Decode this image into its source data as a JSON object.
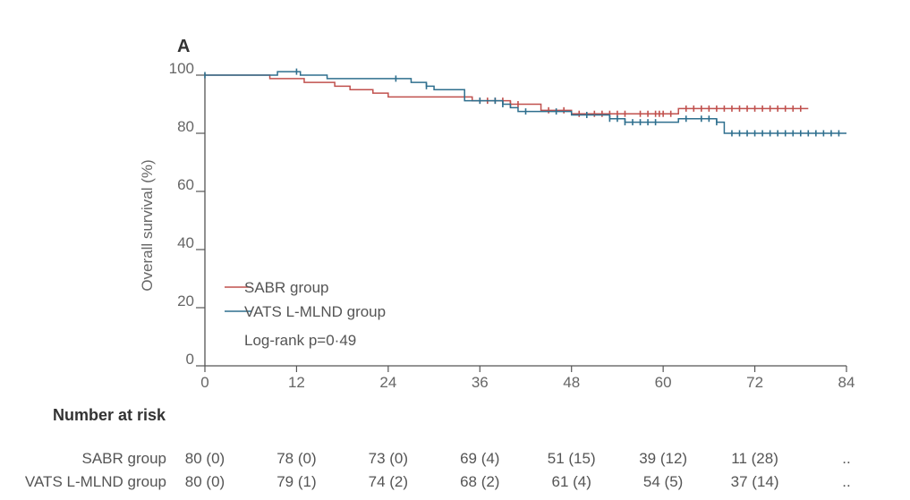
{
  "chart_data": {
    "type": "line",
    "panel_label": "A",
    "ylabel": "Overall survival (%)",
    "xlim": [
      0,
      84
    ],
    "ylim": [
      0,
      100
    ],
    "x_ticks": [
      0,
      12,
      24,
      36,
      48,
      60,
      72,
      84
    ],
    "x_tick_labels": [
      "0",
      "12",
      "24",
      "36",
      "48",
      "60",
      "72",
      "84"
    ],
    "y_ticks": [
      0,
      20,
      40,
      60,
      80,
      100
    ],
    "y_tick_labels": [
      "0",
      "20",
      "40",
      "60",
      "80",
      "100"
    ],
    "series": [
      {
        "name": "SABR group",
        "color": "#c0504d",
        "steps": [
          [
            0,
            100
          ],
          [
            8.5,
            98.8
          ],
          [
            13,
            97.5
          ],
          [
            17,
            96.2
          ],
          [
            19,
            95
          ],
          [
            22,
            93.8
          ],
          [
            24,
            92.5
          ],
          [
            35,
            91.2
          ],
          [
            40,
            90
          ],
          [
            44,
            87.9
          ],
          [
            48,
            86.7
          ],
          [
            62,
            88.5
          ],
          [
            79,
            88.5
          ]
        ],
        "censor_marks": [
          36,
          37,
          38,
          39,
          40,
          41,
          45,
          47,
          49,
          51,
          52,
          53,
          54,
          55,
          57,
          58,
          59,
          59.5,
          60,
          61,
          63,
          64,
          65,
          66,
          67,
          68,
          69,
          70,
          71,
          72,
          73,
          74,
          75,
          76,
          77,
          78
        ]
      },
      {
        "name": "VATS L-MLND group",
        "color": "#2e6f8e",
        "steps": [
          [
            0,
            100
          ],
          [
            9.5,
            101.2
          ],
          [
            12.5,
            100
          ],
          [
            16,
            98.8
          ],
          [
            27,
            97.5
          ],
          [
            29,
            96.2
          ],
          [
            30,
            95
          ],
          [
            34,
            91.2
          ],
          [
            39,
            90
          ],
          [
            40,
            88.8
          ],
          [
            41,
            87.5
          ],
          [
            48,
            86.3
          ],
          [
            53,
            85
          ],
          [
            55,
            83.8
          ],
          [
            62,
            85
          ],
          [
            67,
            83.8
          ],
          [
            68,
            80
          ],
          [
            84,
            80
          ]
        ],
        "censor_marks": [
          0,
          12,
          25,
          29,
          36,
          38,
          39,
          42,
          46,
          50,
          53,
          54,
          55,
          56,
          57,
          58,
          59,
          63,
          65,
          66,
          67,
          69,
          70,
          71,
          72,
          73,
          74,
          75,
          76,
          77,
          78,
          79,
          80,
          81,
          82,
          83
        ]
      }
    ],
    "annotation": "Log-rank p=0·49",
    "risk_table": {
      "title": "Number at risk",
      "rows": [
        {
          "label": "SABR group",
          "values": [
            "80 (0)",
            "78 (0)",
            "73 (0)",
            "69 (4)",
            "51 (15)",
            "39 (12)",
            "11 (28)",
            ".."
          ]
        },
        {
          "label": "VATS L-MLND group",
          "values": [
            "80 (0)",
            "79 (1)",
            "74 (2)",
            "68 (2)",
            "61 (4)",
            "54 (5)",
            "37 (14)",
            ".."
          ]
        }
      ]
    }
  }
}
